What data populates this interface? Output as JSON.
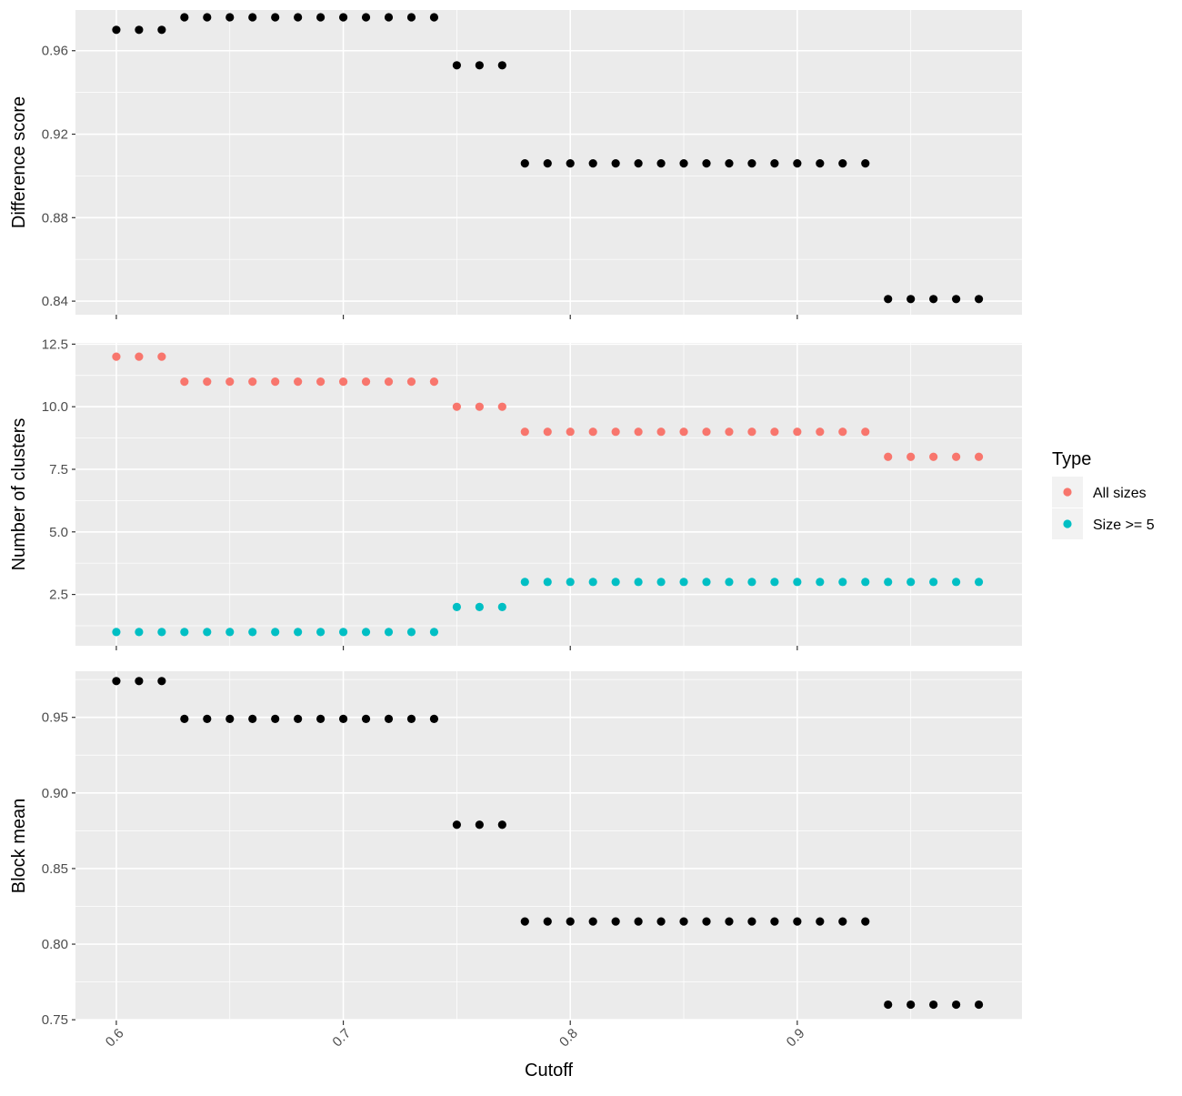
{
  "chart_data": {
    "type": "scatter",
    "xlabel": "Cutoff",
    "xlim": [
      0.582,
      0.999
    ],
    "x_ticks": [
      0.6,
      0.7,
      0.8,
      0.9
    ],
    "x_tick_labels": [
      "0.6",
      "0.7",
      "0.8",
      "0.9"
    ],
    "x": [
      0.6,
      0.61,
      0.62,
      0.63,
      0.64,
      0.65,
      0.66,
      0.67,
      0.68,
      0.69,
      0.7,
      0.71,
      0.72,
      0.73,
      0.74,
      0.75,
      0.76,
      0.77,
      0.78,
      0.79,
      0.8,
      0.81,
      0.82,
      0.83,
      0.84,
      0.85,
      0.86,
      0.87,
      0.88,
      0.89,
      0.9,
      0.91,
      0.92,
      0.93,
      0.94,
      0.95,
      0.96,
      0.97,
      0.98
    ],
    "grid": true,
    "panels": [
      {
        "ylabel": "Difference score",
        "ylim": [
          0.8335,
          0.9795
        ],
        "y_ticks": [
          0.84,
          0.88,
          0.92,
          0.96
        ],
        "y_tick_labels": [
          "0.84",
          "0.88",
          "0.92",
          "0.96"
        ],
        "series": [
          {
            "color": "#000000",
            "values": [
              0.97,
              0.97,
              0.97,
              0.976,
              0.976,
              0.976,
              0.976,
              0.976,
              0.976,
              0.976,
              0.976,
              0.976,
              0.976,
              0.976,
              0.976,
              0.953,
              0.953,
              0.953,
              0.906,
              0.906,
              0.906,
              0.906,
              0.906,
              0.906,
              0.906,
              0.906,
              0.906,
              0.906,
              0.906,
              0.906,
              0.906,
              0.906,
              0.906,
              0.906,
              0.841,
              0.841,
              0.841,
              0.841,
              0.841
            ]
          }
        ]
      },
      {
        "ylabel": "Number of clusters",
        "ylim": [
          0.45,
          12.55
        ],
        "y_ticks": [
          2.5,
          5.0,
          7.5,
          10.0,
          12.5
        ],
        "y_tick_labels": [
          "2.5",
          "5.0",
          "7.5",
          "10.0",
          "12.5"
        ],
        "series": [
          {
            "name": "All sizes",
            "color": "#F8766D",
            "values": [
              12,
              12,
              12,
              11,
              11,
              11,
              11,
              11,
              11,
              11,
              11,
              11,
              11,
              11,
              11,
              10,
              10,
              10,
              9,
              9,
              9,
              9,
              9,
              9,
              9,
              9,
              9,
              9,
              9,
              9,
              9,
              9,
              9,
              9,
              8,
              8,
              8,
              8,
              8
            ]
          },
          {
            "name": "Size >= 5",
            "color": "#00BFC4",
            "values": [
              1,
              1,
              1,
              1,
              1,
              1,
              1,
              1,
              1,
              1,
              1,
              1,
              1,
              1,
              1,
              2,
              2,
              2,
              3,
              3,
              3,
              3,
              3,
              3,
              3,
              3,
              3,
              3,
              3,
              3,
              3,
              3,
              3,
              3,
              3,
              3,
              3,
              3,
              3
            ]
          }
        ]
      },
      {
        "ylabel": "Block mean",
        "ylim": [
          0.7495,
          0.9805
        ],
        "y_ticks": [
          0.75,
          0.8,
          0.85,
          0.9,
          0.95
        ],
        "y_tick_labels": [
          "0.75",
          "0.80",
          "0.85",
          "0.90",
          "0.95"
        ],
        "series": [
          {
            "color": "#000000",
            "values": [
              0.974,
              0.974,
              0.974,
              0.949,
              0.949,
              0.949,
              0.949,
              0.949,
              0.949,
              0.949,
              0.949,
              0.949,
              0.949,
              0.949,
              0.949,
              0.879,
              0.879,
              0.879,
              0.815,
              0.815,
              0.815,
              0.815,
              0.815,
              0.815,
              0.815,
              0.815,
              0.815,
              0.815,
              0.815,
              0.815,
              0.815,
              0.815,
              0.815,
              0.815,
              0.76,
              0.76,
              0.76,
              0.76,
              0.76
            ]
          }
        ]
      }
    ],
    "legend": {
      "title": "Type",
      "placement": "right",
      "entries": [
        {
          "label": "All sizes",
          "color": "#F8766D"
        },
        {
          "label": "Size >= 5",
          "color": "#00BFC4"
        }
      ]
    }
  }
}
